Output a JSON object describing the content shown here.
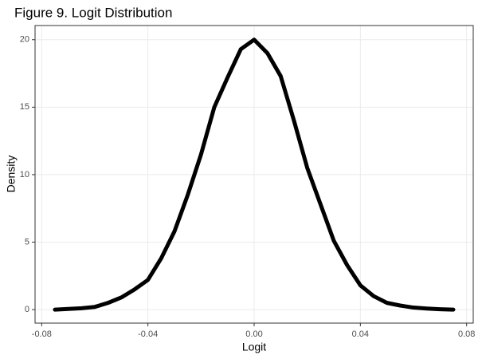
{
  "chart_data": {
    "type": "line",
    "title": "Figure 9. Logit Distribution",
    "x_label": "Logit",
    "y_label": "Density",
    "x": [
      -0.075,
      -0.07,
      -0.065,
      -0.06,
      -0.055,
      -0.05,
      -0.045,
      -0.04,
      -0.035,
      -0.03,
      -0.025,
      -0.02,
      -0.015,
      -0.01,
      -0.005,
      0,
      0.005,
      0.01,
      0.015,
      0.02,
      0.025,
      0.03,
      0.035,
      0.04,
      0.045,
      0.05,
      0.055,
      0.06,
      0.065,
      0.07,
      0.075
    ],
    "series": [
      {
        "name": "Density",
        "color": "#000000",
        "values": [
          0.0,
          0.05,
          0.1,
          0.2,
          0.5,
          0.9,
          1.5,
          2.2,
          3.8,
          5.8,
          8.5,
          11.5,
          15.0,
          17.2,
          19.3,
          20.0,
          19.0,
          17.3,
          14.0,
          10.5,
          7.8,
          5.1,
          3.3,
          1.8,
          1.0,
          0.5,
          0.3,
          0.15,
          0.08,
          0.03,
          0.0
        ]
      }
    ],
    "xlim": [
      -0.0825,
      0.0825
    ],
    "ylim": [
      -1.0,
      21.05
    ],
    "xticks": [
      -0.08,
      -0.04,
      {
        "value": 0,
        "label": "0.00"
      },
      0.04,
      0.08
    ],
    "yticks": [
      0,
      5,
      10,
      15,
      20
    ],
    "grid": true
  }
}
